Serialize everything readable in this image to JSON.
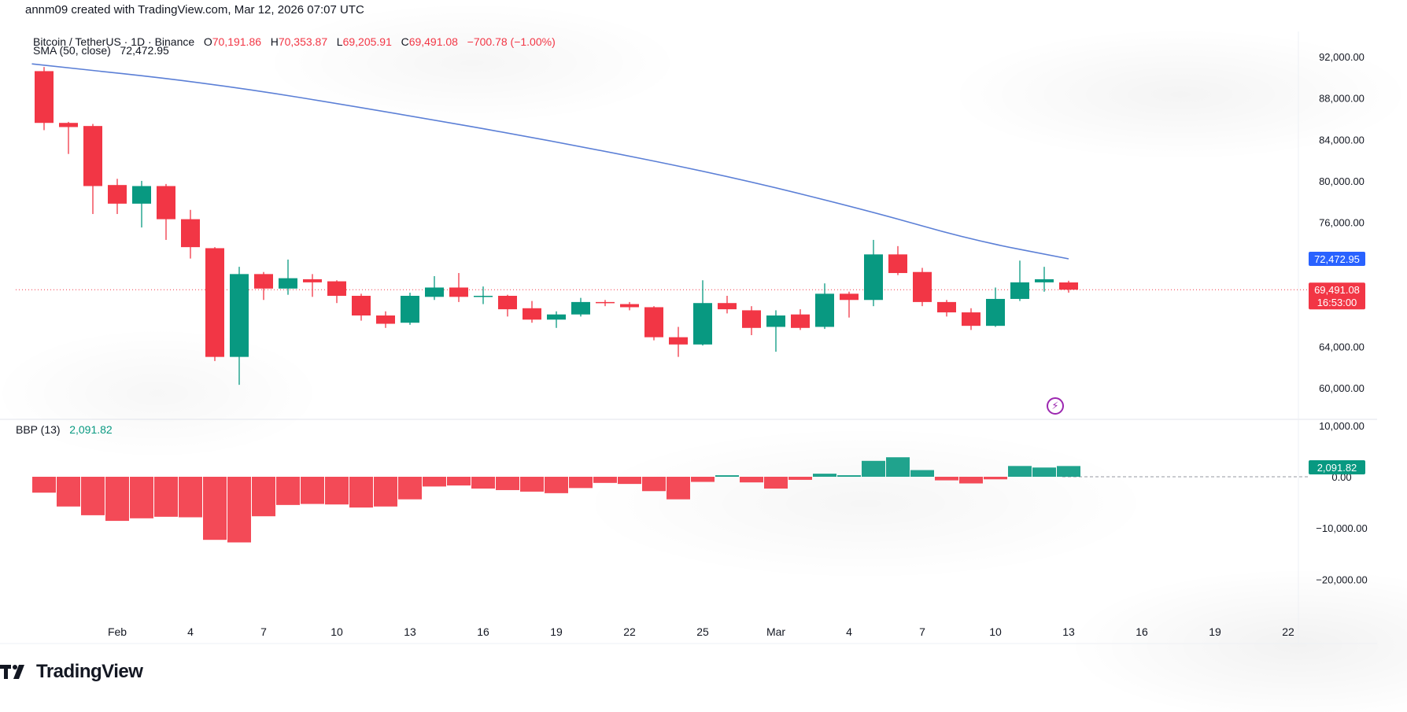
{
  "watermark": "annm09 created with TradingView.com, Mar 12, 2026 07:07 UTC",
  "legend": {
    "symbol": "Bitcoin / TetherUS · 1D · Binance",
    "o_label": "O",
    "o_value": "70,191.86",
    "h_label": "H",
    "h_value": "70,353.87",
    "l_label": "L",
    "l_value": "69,205.91",
    "c_label": "C",
    "c_value": "69,491.08",
    "change": "−700.78 (−1.00%)",
    "sma_label": "SMA (50, close)",
    "sma_value": "72,472.95",
    "bbp_label": "BBP (13)",
    "bbp_value": "2,091.82"
  },
  "badges": {
    "sma": "72,472.95",
    "price": "69,491.08",
    "countdown": "16:53:00",
    "bbp": "2,091.82"
  },
  "brand": "TradingView",
  "colors": {
    "up": "#089981",
    "down": "#f23645",
    "sma": "#5b7fd6",
    "sma_badge": "#2962ff",
    "price_badge": "#f23645",
    "bbp_badge": "#089981"
  },
  "chart_data": {
    "type": "candlestick",
    "price_axis_ticks": [
      "92,000.00",
      "88,000.00",
      "84,000.00",
      "80,000.00",
      "76,000.00",
      "64,000.00",
      "60,000.00"
    ],
    "bbp_axis_ticks": [
      "10,000.00",
      "0.00",
      "−10,000.00",
      "−20,000.00"
    ],
    "x_ticks": [
      "Feb",
      "4",
      "7",
      "10",
      "13",
      "16",
      "19",
      "22",
      "25",
      "Mar",
      "4",
      "7",
      "10",
      "13",
      "16",
      "19",
      "22"
    ],
    "candles": [
      {
        "o": 90600,
        "h": 91000,
        "l": 84900,
        "c": 85600
      },
      {
        "o": 85600,
        "h": 85700,
        "l": 82600,
        "c": 85200
      },
      {
        "o": 85300,
        "h": 85500,
        "l": 76800,
        "c": 79500
      },
      {
        "o": 79600,
        "h": 80200,
        "l": 76800,
        "c": 77800
      },
      {
        "o": 77800,
        "h": 80000,
        "l": 75500,
        "c": 79500
      },
      {
        "o": 79500,
        "h": 79700,
        "l": 74300,
        "c": 76300
      },
      {
        "o": 76300,
        "h": 77200,
        "l": 72500,
        "c": 73600
      },
      {
        "o": 73500,
        "h": 73600,
        "l": 62600,
        "c": 63000
      },
      {
        "o": 63000,
        "h": 71700,
        "l": 60300,
        "c": 71000
      },
      {
        "o": 71000,
        "h": 71200,
        "l": 68500,
        "c": 69600
      },
      {
        "o": 69600,
        "h": 72400,
        "l": 69000,
        "c": 70600
      },
      {
        "o": 70500,
        "h": 71000,
        "l": 68800,
        "c": 70200
      },
      {
        "o": 70300,
        "h": 70400,
        "l": 68200,
        "c": 68900
      },
      {
        "o": 68900,
        "h": 69100,
        "l": 66500,
        "c": 67000
      },
      {
        "o": 67000,
        "h": 67400,
        "l": 65800,
        "c": 66200
      },
      {
        "o": 66300,
        "h": 69200,
        "l": 66100,
        "c": 68900
      },
      {
        "o": 68800,
        "h": 70800,
        "l": 68500,
        "c": 69700
      },
      {
        "o": 69700,
        "h": 71100,
        "l": 68300,
        "c": 68800
      },
      {
        "o": 68900,
        "h": 69800,
        "l": 68100,
        "c": 68900
      },
      {
        "o": 68900,
        "h": 69000,
        "l": 66900,
        "c": 67600
      },
      {
        "o": 67700,
        "h": 68400,
        "l": 66300,
        "c": 66600
      },
      {
        "o": 66600,
        "h": 67400,
        "l": 65800,
        "c": 67100
      },
      {
        "o": 67100,
        "h": 68700,
        "l": 66900,
        "c": 68300
      },
      {
        "o": 68300,
        "h": 68500,
        "l": 67900,
        "c": 68200
      },
      {
        "o": 68100,
        "h": 68300,
        "l": 67500,
        "c": 67800
      },
      {
        "o": 67800,
        "h": 67900,
        "l": 64600,
        "c": 64900
      },
      {
        "o": 64900,
        "h": 65900,
        "l": 63000,
        "c": 64200
      },
      {
        "o": 64200,
        "h": 70400,
        "l": 64100,
        "c": 68200
      },
      {
        "o": 68200,
        "h": 68900,
        "l": 67200,
        "c": 67600
      },
      {
        "o": 67500,
        "h": 67900,
        "l": 65100,
        "c": 65800
      },
      {
        "o": 65900,
        "h": 67500,
        "l": 63500,
        "c": 67000
      },
      {
        "o": 67100,
        "h": 67600,
        "l": 65600,
        "c": 65800
      },
      {
        "o": 65900,
        "h": 70100,
        "l": 65700,
        "c": 69100
      },
      {
        "o": 69100,
        "h": 69300,
        "l": 66800,
        "c": 68500
      },
      {
        "o": 68500,
        "h": 74300,
        "l": 67900,
        "c": 72900
      },
      {
        "o": 72900,
        "h": 73700,
        "l": 70900,
        "c": 71100
      },
      {
        "o": 71200,
        "h": 71600,
        "l": 67900,
        "c": 68300
      },
      {
        "o": 68300,
        "h": 68500,
        "l": 66900,
        "c": 67300
      },
      {
        "o": 67300,
        "h": 67700,
        "l": 65600,
        "c": 66000
      },
      {
        "o": 66000,
        "h": 69700,
        "l": 65900,
        "c": 68600
      },
      {
        "o": 68600,
        "h": 72300,
        "l": 68400,
        "c": 70200
      },
      {
        "o": 70200,
        "h": 71700,
        "l": 69300,
        "c": 70500
      },
      {
        "o": 70192,
        "h": 70354,
        "l": 69206,
        "c": 69491
      }
    ],
    "sma": [
      {
        "i": -0.5,
        "v": 91300
      },
      {
        "i": 7,
        "v": 89400
      },
      {
        "i": 14,
        "v": 86700
      },
      {
        "i": 21,
        "v": 83800
      },
      {
        "i": 28,
        "v": 80500
      },
      {
        "i": 34,
        "v": 77000
      },
      {
        "i": 38,
        "v": 74300
      },
      {
        "i": 42,
        "v": 72473
      }
    ],
    "bbp": [
      -3100,
      -5800,
      -7500,
      -8600,
      -8100,
      -7800,
      -7900,
      -12300,
      -12800,
      -7700,
      -5500,
      -5300,
      -5400,
      -6000,
      -5800,
      -4400,
      -1900,
      -1700,
      -2300,
      -2600,
      -2900,
      -3200,
      -2200,
      -1200,
      -1400,
      -2800,
      -4400,
      -1000,
      300,
      -1100,
      -2300,
      -600,
      600,
      300,
      3100,
      3800,
      1300,
      -700,
      -1300,
      -500,
      2100,
      1800,
      2092
    ]
  }
}
